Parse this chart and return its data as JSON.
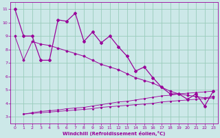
{
  "xlabel": "Windchill (Refroidissement éolien,°C)",
  "bg_color": "#cce8e8",
  "grid_color": "#99ccbb",
  "line_color": "#990099",
  "x_ticks": [
    0,
    1,
    2,
    3,
    4,
    5,
    6,
    7,
    8,
    9,
    10,
    11,
    12,
    13,
    14,
    15,
    16,
    17,
    18,
    19,
    20,
    21,
    22,
    23
  ],
  "y_ticks": [
    3,
    4,
    5,
    6,
    7,
    8,
    9,
    10,
    11
  ],
  "ylim": [
    2.5,
    11.5
  ],
  "xlim": [
    -0.5,
    23.5
  ],
  "series1_x": [
    0,
    1,
    2,
    3,
    4,
    5,
    6,
    7,
    8,
    9,
    10,
    11,
    12,
    13,
    14,
    15,
    16,
    17,
    18,
    19,
    20,
    21,
    22,
    23
  ],
  "series1_y": [
    11.0,
    9.0,
    9.0,
    7.2,
    7.2,
    10.2,
    10.1,
    10.7,
    8.6,
    9.3,
    8.5,
    9.0,
    8.2,
    7.5,
    6.4,
    6.7,
    5.9,
    5.2,
    4.7,
    4.7,
    4.3,
    4.7,
    3.8,
    4.9
  ],
  "series2_x": [
    0,
    1,
    2,
    3,
    4,
    5,
    6,
    7,
    8,
    9,
    10,
    11,
    12,
    13,
    14,
    15,
    16,
    17,
    18,
    19,
    20,
    21,
    22,
    23
  ],
  "series2_y": [
    9.0,
    7.2,
    8.6,
    8.4,
    8.3,
    8.1,
    7.9,
    7.7,
    7.5,
    7.2,
    6.9,
    6.7,
    6.5,
    6.2,
    5.9,
    5.7,
    5.5,
    5.2,
    4.9,
    4.7,
    4.6,
    4.5,
    4.4,
    4.5
  ],
  "series3_x": [
    1,
    2,
    3,
    4,
    5,
    6,
    7,
    8,
    9,
    10,
    11,
    12,
    13,
    14,
    15,
    16,
    17,
    18,
    19,
    20,
    21,
    22,
    23
  ],
  "series3_y": [
    3.2,
    3.25,
    3.3,
    3.35,
    3.4,
    3.45,
    3.5,
    3.55,
    3.6,
    3.7,
    3.75,
    3.8,
    3.85,
    3.9,
    3.95,
    4.0,
    4.1,
    4.15,
    4.2,
    4.25,
    4.3,
    4.35,
    4.4
  ],
  "series4_x": [
    1,
    2,
    3,
    4,
    5,
    6,
    7,
    8,
    9,
    10,
    11,
    12,
    13,
    14,
    15,
    16,
    17,
    18,
    19,
    20,
    21,
    22,
    23
  ],
  "series4_y": [
    3.2,
    3.3,
    3.4,
    3.45,
    3.5,
    3.6,
    3.65,
    3.7,
    3.8,
    3.9,
    4.0,
    4.1,
    4.15,
    4.25,
    4.35,
    4.45,
    4.55,
    4.6,
    4.7,
    4.75,
    4.8,
    4.85,
    4.9
  ]
}
